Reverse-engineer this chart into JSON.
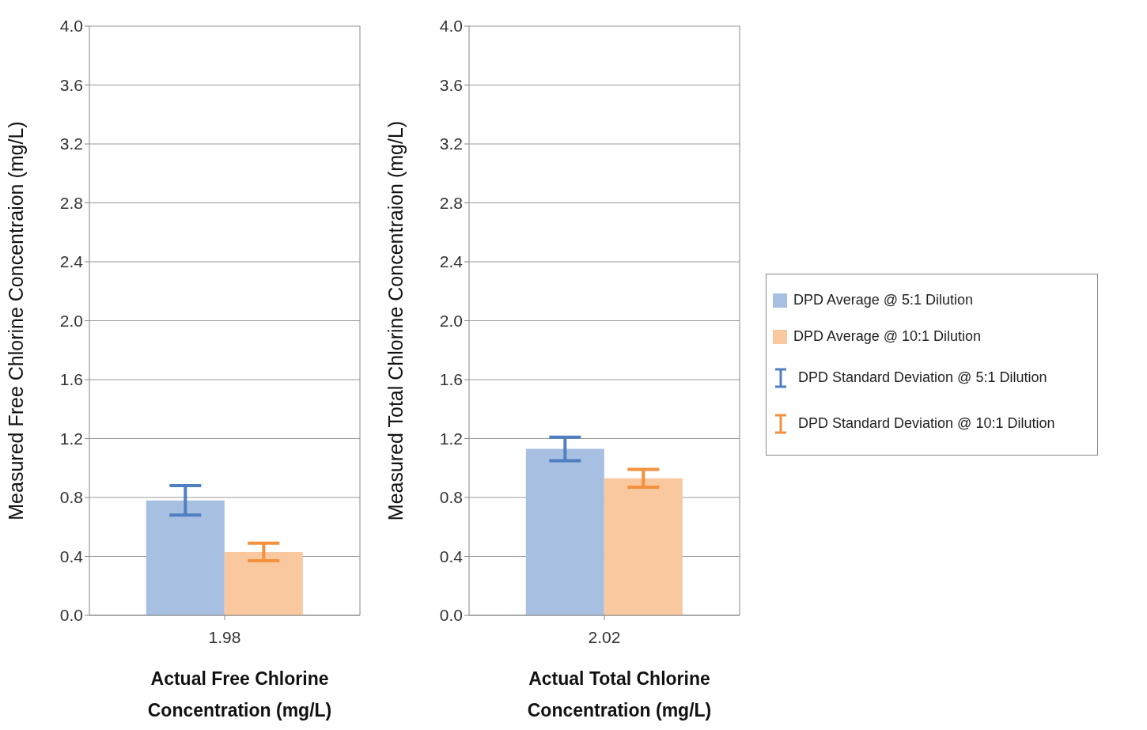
{
  "chart_data": [
    {
      "type": "bar",
      "categories": [
        "1.98"
      ],
      "xlabel": "Actual Free Chlorine Concentration (mg/L)",
      "ylabel": "Measured Free Chlorine Concentraion (mg/L)",
      "ylim": [
        0,
        4
      ],
      "yticks": [
        {
          "value": 0,
          "label": "0.0"
        },
        0.4,
        0.8,
        1.2,
        1.6,
        {
          "value": 2,
          "label": "2.0"
        },
        2.4,
        2.8,
        3.2,
        3.6,
        {
          "value": 4,
          "label": "4.0"
        }
      ],
      "grid": "y",
      "series": [
        {
          "color": "#a7bfe0",
          "values": [
            0.78
          ],
          "errors": [
            0.1
          ]
        },
        {
          "color": "#f9c89e",
          "values": [
            0.43
          ],
          "errors": [
            0.06
          ]
        }
      ]
    },
    {
      "type": "bar",
      "categories": [
        "2.02"
      ],
      "xlabel": "Actual Total Chlorine Concentration (mg/L)",
      "ylabel": "Measured Total Chlorine Concentraion (mg/L)",
      "ylim": [
        0,
        4
      ],
      "yticks": [
        {
          "value": 0,
          "label": "0.0"
        },
        0.4,
        0.8,
        1.2,
        1.6,
        {
          "value": 2,
          "label": "2.0"
        },
        2.4,
        2.8,
        3.2,
        3.6,
        {
          "value": 4,
          "label": "4.0"
        }
      ],
      "grid": "y",
      "legend": "right",
      "series": [
        {
          "name": "DPD Average @ 5:1 Dilution",
          "color": "#a7bfe0",
          "values": [
            1.13
          ],
          "errors": [
            0.08
          ]
        },
        {
          "name": "DPD Average @ 10:1 Dilution",
          "color": "#f9c89e",
          "values": [
            0.93
          ],
          "errors": [
            0.06
          ]
        }
      ],
      "annotations": [
        "DPD Standard Deviation @ 5:1 Dilution",
        "DPD Standard Deviation @ 10:1 Dilution"
      ]
    }
  ]
}
